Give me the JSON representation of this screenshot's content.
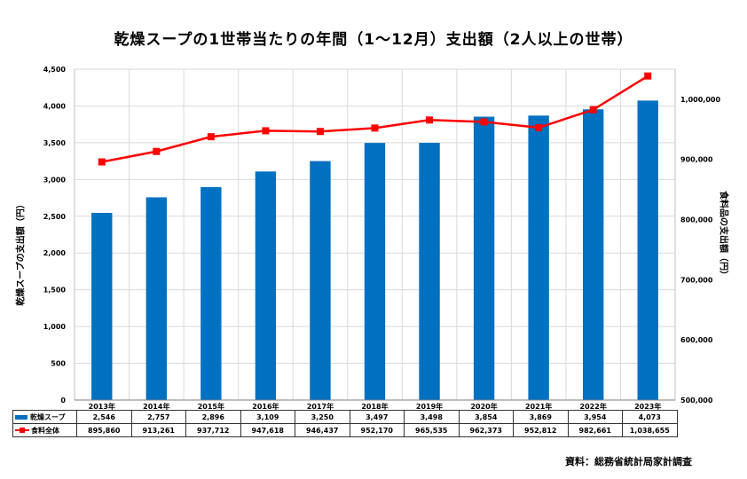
{
  "chart_data": {
    "type": "bar",
    "title": "乾燥スープの1世帯当たりの年間（1～12月）支出額（2人以上の世帯）",
    "categories": [
      "2013年",
      "2014年",
      "2015年",
      "2016年",
      "2017年",
      "2018年",
      "2019年",
      "2020年",
      "2021年",
      "2022年",
      "2023年"
    ],
    "series": [
      {
        "name": "乾燥スープ",
        "type": "bar",
        "axis": "left",
        "color": "#0070C0",
        "values": [
          2546,
          2757,
          2896,
          3109,
          3250,
          3497,
          3498,
          3854,
          3869,
          3954,
          4073
        ],
        "labels": [
          "2,546",
          "2,757",
          "2,896",
          "3,109",
          "3,250",
          "3,497",
          "3,498",
          "3,854",
          "3,869",
          "3,954",
          "4,073"
        ]
      },
      {
        "name": "食料全体",
        "type": "line",
        "axis": "right",
        "color": "#FF0000",
        "values": [
          895860,
          913261,
          937712,
          947618,
          946437,
          952170,
          965535,
          962373,
          952812,
          982661,
          1038655
        ],
        "labels": [
          "895,860",
          "913,261",
          "937,712",
          "947,618",
          "946,437",
          "952,170",
          "965,535",
          "962,373",
          "952,812",
          "982,661",
          "1,038,655"
        ]
      }
    ],
    "ylabel_left": "乾燥スープの支出額（円）",
    "ylabel_right": "食料品の支出額（円）",
    "ylim_left": [
      0,
      4500
    ],
    "ylim_right": [
      500000,
      1050000
    ],
    "yticks_left": [
      "0",
      "500",
      "1,000",
      "1,500",
      "2,000",
      "2,500",
      "3,000",
      "3,500",
      "4,000",
      "4,500"
    ],
    "yticks_right": [
      "500,000",
      "600,000",
      "700,000",
      "800,000",
      "900,000",
      "1,000,000"
    ],
    "grid": true,
    "legend": "data-table"
  },
  "source": "資料：総務省統計局家計調査"
}
